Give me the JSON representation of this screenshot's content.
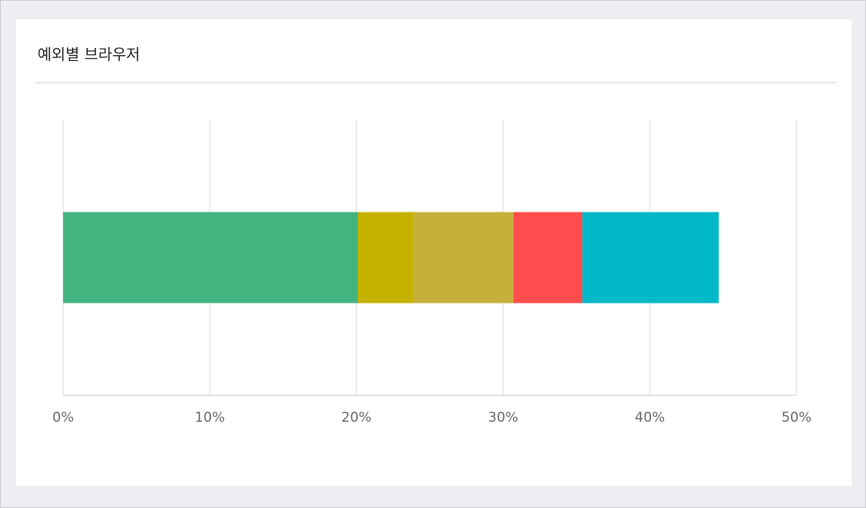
{
  "chart_data": {
    "type": "bar",
    "title": "예외별 브라우저",
    "orientation": "horizontal",
    "stacked": true,
    "series": [
      {
        "color": "#43b380",
        "values": [
          20.1
        ]
      },
      {
        "color": "#c5b100",
        "values": [
          3.8
        ]
      },
      {
        "color": "#c4b03a",
        "values": [
          6.8
        ]
      },
      {
        "color": "#ff4d4d",
        "values": [
          4.7
        ]
      },
      {
        "color": "#00b8c8",
        "values": [
          9.3
        ]
      }
    ],
    "xlim": [
      0,
      50
    ],
    "xticks": [
      {
        "value": 0,
        "label": "0%"
      },
      {
        "value": 10,
        "label": "10%"
      },
      {
        "value": 20,
        "label": "20%"
      },
      {
        "value": 30,
        "label": "30%"
      },
      {
        "value": 40,
        "label": "40%"
      },
      {
        "value": 50,
        "label": "50%"
      }
    ],
    "grid": true
  }
}
